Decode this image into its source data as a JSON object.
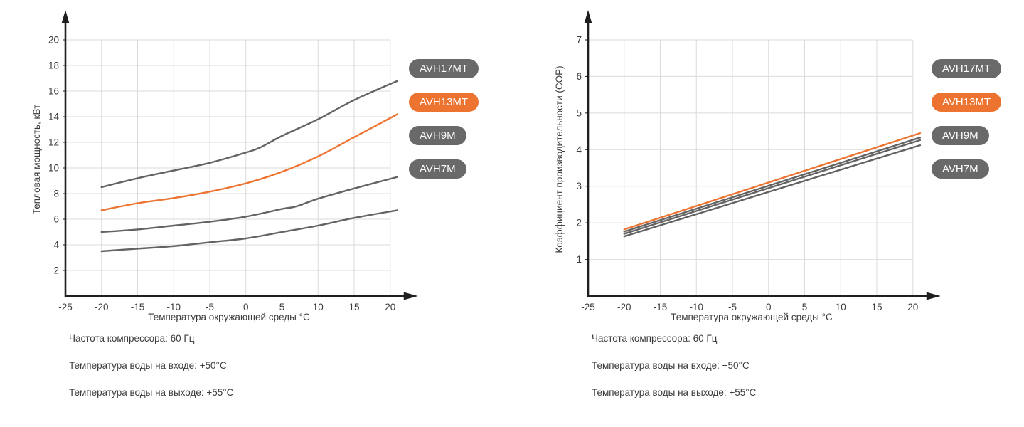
{
  "theme": {
    "orange": "#ED7430",
    "gray_pill": "#696969",
    "line_gray": "#636363",
    "grid": "#DBDBDB",
    "axis": "#1F1F1F",
    "text": "#3C3C3C"
  },
  "chart_data": [
    {
      "type": "line",
      "ylabel": "Тепловая мощность, кВт",
      "xlabel": "Температура окружающей среды °C",
      "xlim": [
        -25,
        22
      ],
      "ylim": [
        0,
        21.6
      ],
      "xticks": [
        -25,
        -20,
        -15,
        -10,
        -5,
        0,
        5,
        10,
        15,
        20
      ],
      "yticks": [
        2,
        4,
        6,
        8,
        10,
        12,
        14,
        16,
        18,
        20
      ],
      "grid": true,
      "legend_position": "right",
      "legend": [
        {
          "label": "AVH17MT",
          "color": "#696969"
        },
        {
          "label": "AVH13MT",
          "color": "#ED7430"
        },
        {
          "label": "AVH9M",
          "color": "#696969"
        },
        {
          "label": "AVH7M",
          "color": "#696969"
        }
      ],
      "series": [
        {
          "name": "AVH17MT",
          "color": "#636363",
          "x": [
            -20,
            -15,
            -10,
            -5,
            0,
            2,
            5,
            10,
            15,
            21
          ],
          "y": [
            8.5,
            9.2,
            9.8,
            10.4,
            11.2,
            11.6,
            12.5,
            13.8,
            15.3,
            16.8
          ]
        },
        {
          "name": "AVH13MT",
          "color": "#ED7430",
          "x": [
            -20,
            -15,
            -10,
            -5,
            0,
            5,
            10,
            15,
            21
          ],
          "y": [
            6.7,
            7.25,
            7.65,
            8.15,
            8.8,
            9.7,
            10.9,
            12.4,
            14.2
          ]
        },
        {
          "name": "AVH9M",
          "color": "#636363",
          "x": [
            -20,
            -15,
            -10,
            -5,
            0,
            5,
            7,
            10,
            15,
            21
          ],
          "y": [
            5.0,
            5.2,
            5.5,
            5.8,
            6.2,
            6.8,
            7.0,
            7.6,
            8.4,
            9.3
          ]
        },
        {
          "name": "AVH7M",
          "color": "#636363",
          "x": [
            -20,
            -15,
            -10,
            -5,
            0,
            5,
            10,
            15,
            21
          ],
          "y": [
            3.5,
            3.7,
            3.9,
            4.2,
            4.5,
            5.0,
            5.5,
            6.1,
            6.7
          ]
        }
      ],
      "notes": [
        "Частота компрессора: 60 Гц",
        "Температура воды на входе: +50°C",
        "Температура воды на выходе: +55°C"
      ]
    },
    {
      "type": "line",
      "ylabel": "Коэффициент производительности (COP)",
      "xlabel": "Температура окружающей среды °C",
      "xlim": [
        -25,
        22
      ],
      "ylim": [
        0,
        7.5
      ],
      "xticks": [
        -25,
        -20,
        -15,
        -10,
        -5,
        0,
        5,
        10,
        15,
        20
      ],
      "yticks": [
        1,
        2,
        3,
        4,
        5,
        6,
        7
      ],
      "grid": true,
      "legend_position": "right",
      "legend": [
        {
          "label": "AVH17MT",
          "color": "#696969"
        },
        {
          "label": "AVH13MT",
          "color": "#ED7430"
        },
        {
          "label": "AVH9M",
          "color": "#696969"
        },
        {
          "label": "AVH7M",
          "color": "#696969"
        }
      ],
      "series": [
        {
          "name": "AVH17MT",
          "color": "#636363",
          "x": [
            -20,
            21
          ],
          "y": [
            1.76,
            4.33
          ]
        },
        {
          "name": "AVH13MT",
          "color": "#ED7430",
          "x": [
            -20,
            21
          ],
          "y": [
            1.82,
            4.45
          ]
        },
        {
          "name": "AVH9M",
          "color": "#636363",
          "x": [
            -20,
            21
          ],
          "y": [
            1.7,
            4.26
          ]
        },
        {
          "name": "AVH7M",
          "color": "#636363",
          "x": [
            -20,
            21
          ],
          "y": [
            1.63,
            4.12
          ]
        }
      ],
      "notes": [
        "Частота компрессора: 60 Гц",
        "Температура воды на входе: +50°C",
        "Температура воды на выходе: +55°C"
      ]
    }
  ]
}
